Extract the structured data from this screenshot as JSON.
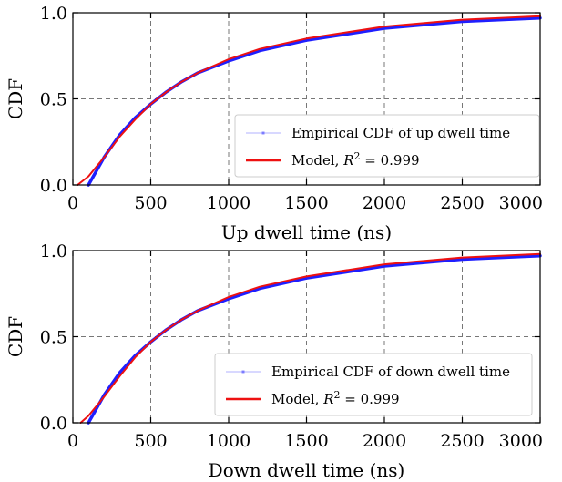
{
  "chart_data": [
    {
      "type": "line",
      "xlabel": "Up dwell time (ns)",
      "ylabel": "CDF",
      "xlim": [
        0,
        3000
      ],
      "ylim": [
        0,
        1
      ],
      "xticks": [
        0,
        500,
        1000,
        1500,
        2000,
        2500,
        3000
      ],
      "yticks": [
        0.0,
        0.5,
        1.0
      ],
      "ytick_labels": [
        "0.0",
        "0.5",
        "1.0"
      ],
      "grid": true,
      "legend_position": "lower-right",
      "legend": {
        "empirical": "Empirical CDF of up dwell time",
        "model_prefix": "Model, ",
        "model_r": "R",
        "model_sup": "2",
        "model_suffix": " = 0.999"
      },
      "series": [
        {
          "name": "Empirical CDF of up dwell time",
          "color": "#1f1fff",
          "x": [
            100,
            150,
            200,
            300,
            400,
            500,
            600,
            700,
            800,
            1000,
            1200,
            1500,
            2000,
            2500,
            3000
          ],
          "y": [
            0.0,
            0.08,
            0.16,
            0.29,
            0.39,
            0.47,
            0.54,
            0.6,
            0.65,
            0.72,
            0.78,
            0.84,
            0.91,
            0.95,
            0.97
          ]
        },
        {
          "name": "Model, R2 = 0.999",
          "color": "#ee1111",
          "x": [
            30,
            100,
            200,
            300,
            400,
            500,
            600,
            700,
            800,
            1000,
            1200,
            1500,
            2000,
            2500,
            3000
          ],
          "y": [
            0.0,
            0.05,
            0.16,
            0.28,
            0.38,
            0.47,
            0.54,
            0.6,
            0.65,
            0.73,
            0.79,
            0.85,
            0.92,
            0.96,
            0.98
          ]
        }
      ]
    },
    {
      "type": "line",
      "xlabel": "Down dwell time (ns)",
      "ylabel": "CDF",
      "xlim": [
        0,
        3000
      ],
      "ylim": [
        0,
        1
      ],
      "xticks": [
        0,
        500,
        1000,
        1500,
        2000,
        2500,
        3000
      ],
      "yticks": [
        0.0,
        0.5,
        1.0
      ],
      "ytick_labels": [
        "0.0",
        "0.5",
        "1.0"
      ],
      "grid": true,
      "legend_position": "lower-right",
      "legend": {
        "empirical": "Empirical CDF of down dwell time",
        "model_prefix": "Model, ",
        "model_r": "R",
        "model_sup": "2",
        "model_suffix": " = 0.999"
      },
      "series": [
        {
          "name": "Empirical CDF of down dwell time",
          "color": "#1f1fff",
          "x": [
            100,
            150,
            200,
            300,
            400,
            500,
            600,
            700,
            800,
            1000,
            1200,
            1500,
            2000,
            2500,
            3000
          ],
          "y": [
            0.0,
            0.08,
            0.16,
            0.29,
            0.39,
            0.47,
            0.54,
            0.6,
            0.65,
            0.72,
            0.78,
            0.84,
            0.91,
            0.95,
            0.97
          ]
        },
        {
          "name": "Model, R2 = 0.999",
          "color": "#ee1111",
          "x": [
            50,
            100,
            200,
            300,
            400,
            500,
            600,
            700,
            800,
            1000,
            1200,
            1500,
            2000,
            2500,
            3000
          ],
          "y": [
            0.0,
            0.04,
            0.15,
            0.27,
            0.38,
            0.47,
            0.54,
            0.6,
            0.65,
            0.73,
            0.79,
            0.85,
            0.92,
            0.96,
            0.98
          ]
        }
      ]
    }
  ]
}
